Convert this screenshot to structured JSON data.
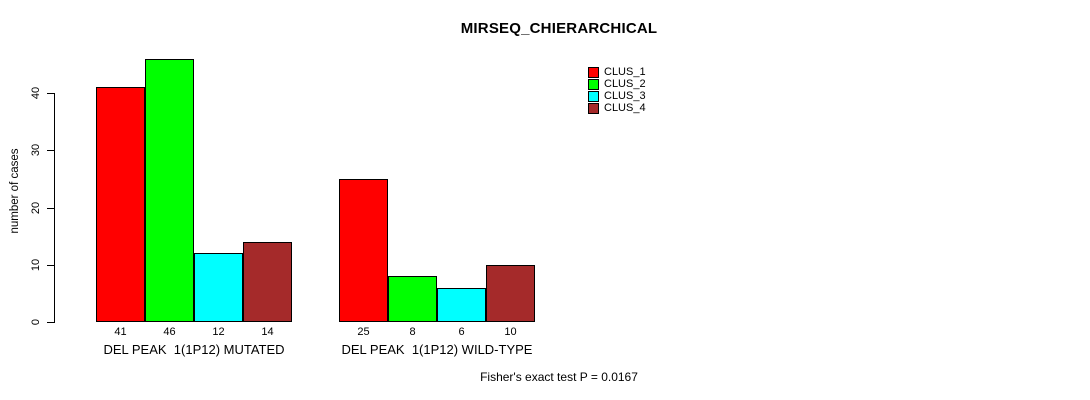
{
  "chart_data": {
    "type": "bar",
    "title": "MIRSEQ_CHIERARCHICAL",
    "xlabel": "",
    "ylabel": "number of cases",
    "ylim": [
      0,
      46
    ],
    "yticks": [
      0,
      10,
      20,
      30,
      40
    ],
    "grid": false,
    "legend_position": "top-right",
    "categories": [
      "DEL PEAK  1(1P12) MUTATED",
      "DEL PEAK  1(1P12) WILD-TYPE"
    ],
    "series": [
      {
        "name": "CLUS_1",
        "color": "#FF0000",
        "values": [
          41,
          25
        ]
      },
      {
        "name": "CLUS_2",
        "color": "#00FF00",
        "values": [
          46,
          8
        ]
      },
      {
        "name": "CLUS_3",
        "color": "#00FFFF",
        "values": [
          12,
          6
        ]
      },
      {
        "name": "CLUS_4",
        "color": "#A52A2A",
        "values": [
          14,
          10
        ]
      }
    ],
    "bar_value_labels": [
      [
        41,
        46,
        12,
        14
      ],
      [
        25,
        8,
        6,
        10
      ]
    ],
    "annotation": "Fisher's exact test P = 0.0167",
    "axis_color": "#000000",
    "background_color": "#FFFFFF",
    "text_color": "#000000"
  }
}
